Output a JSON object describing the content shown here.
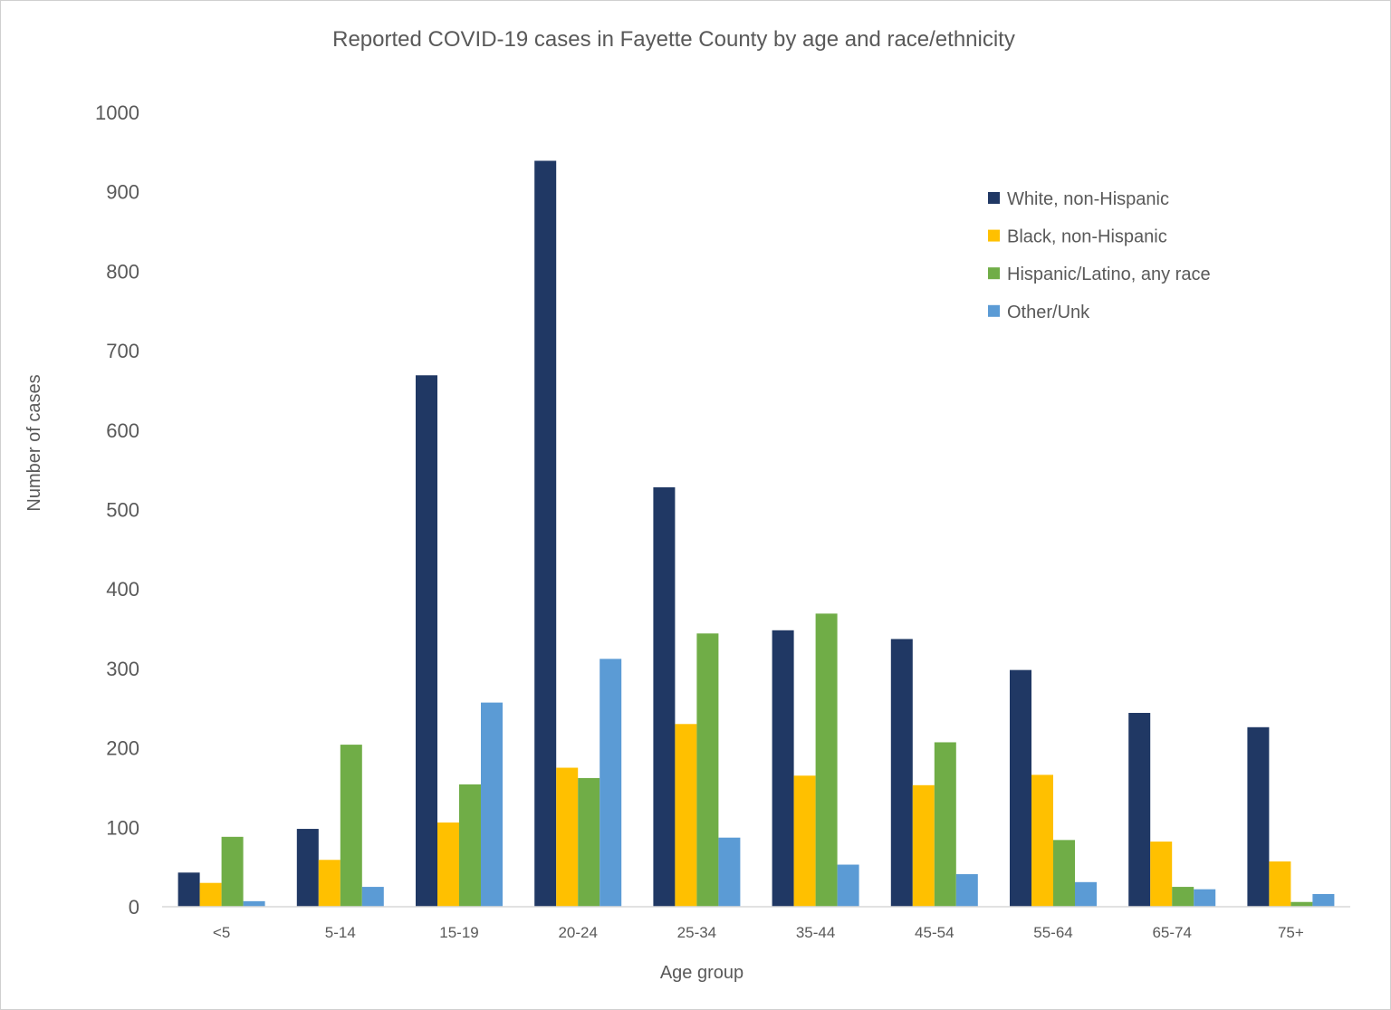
{
  "chart_data": {
    "type": "bar",
    "title": "Reported COVID-19 cases in Fayette County by age and race/ethnicity",
    "xlabel": "Age group",
    "ylabel": "Number of cases",
    "ylim": [
      0,
      1000
    ],
    "yticks": [
      0,
      100,
      200,
      300,
      400,
      500,
      600,
      700,
      800,
      900,
      1000
    ],
    "grid": false,
    "legend_position": "top-right",
    "categories": [
      "<5",
      "5-14",
      "15-19",
      "20-24",
      "25-34",
      "35-44",
      "45-54",
      "55-64",
      "65-74",
      "75+"
    ],
    "series": [
      {
        "name": "White, non-Hispanic",
        "color": "#203864",
        "values": [
          43,
          98,
          669,
          939,
          528,
          348,
          337,
          298,
          244,
          226
        ]
      },
      {
        "name": "Black, non-Hispanic",
        "color": "#FFC000",
        "values": [
          30,
          59,
          106,
          175,
          230,
          165,
          153,
          166,
          82,
          57
        ]
      },
      {
        "name": "Hispanic/Latino, any race",
        "color": "#70AD47",
        "values": [
          88,
          204,
          154,
          162,
          344,
          369,
          207,
          84,
          25,
          6
        ]
      },
      {
        "name": "Other/Unk",
        "color": "#5B9BD5",
        "values": [
          7,
          25,
          257,
          312,
          87,
          53,
          41,
          31,
          22,
          16
        ]
      }
    ]
  }
}
